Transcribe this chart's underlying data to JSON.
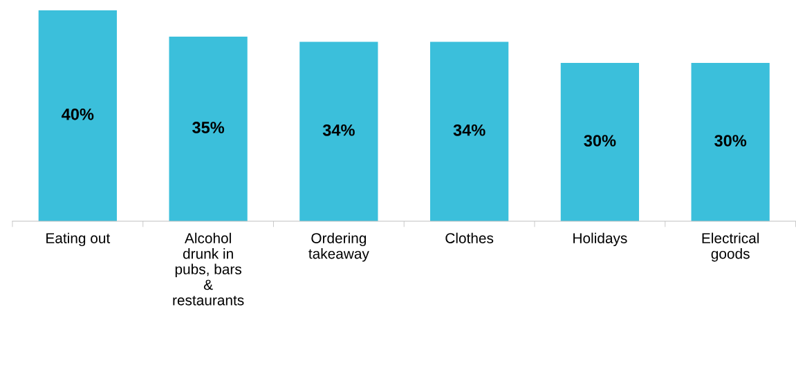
{
  "chart_data": {
    "type": "bar",
    "categories": [
      "Eating out",
      "Alcohol\ndrunk in\npubs, bars\n&\nrestaurants",
      "Ordering\ntakeaway",
      "Clothes",
      "Holidays",
      "Electrical\ngoods"
    ],
    "values": [
      40,
      35,
      34,
      34,
      30,
      30
    ],
    "value_labels": [
      "40%",
      "35%",
      "34%",
      "34%",
      "30%",
      "30%"
    ],
    "color": "#3bbfdb",
    "grid": false,
    "legend": false
  }
}
